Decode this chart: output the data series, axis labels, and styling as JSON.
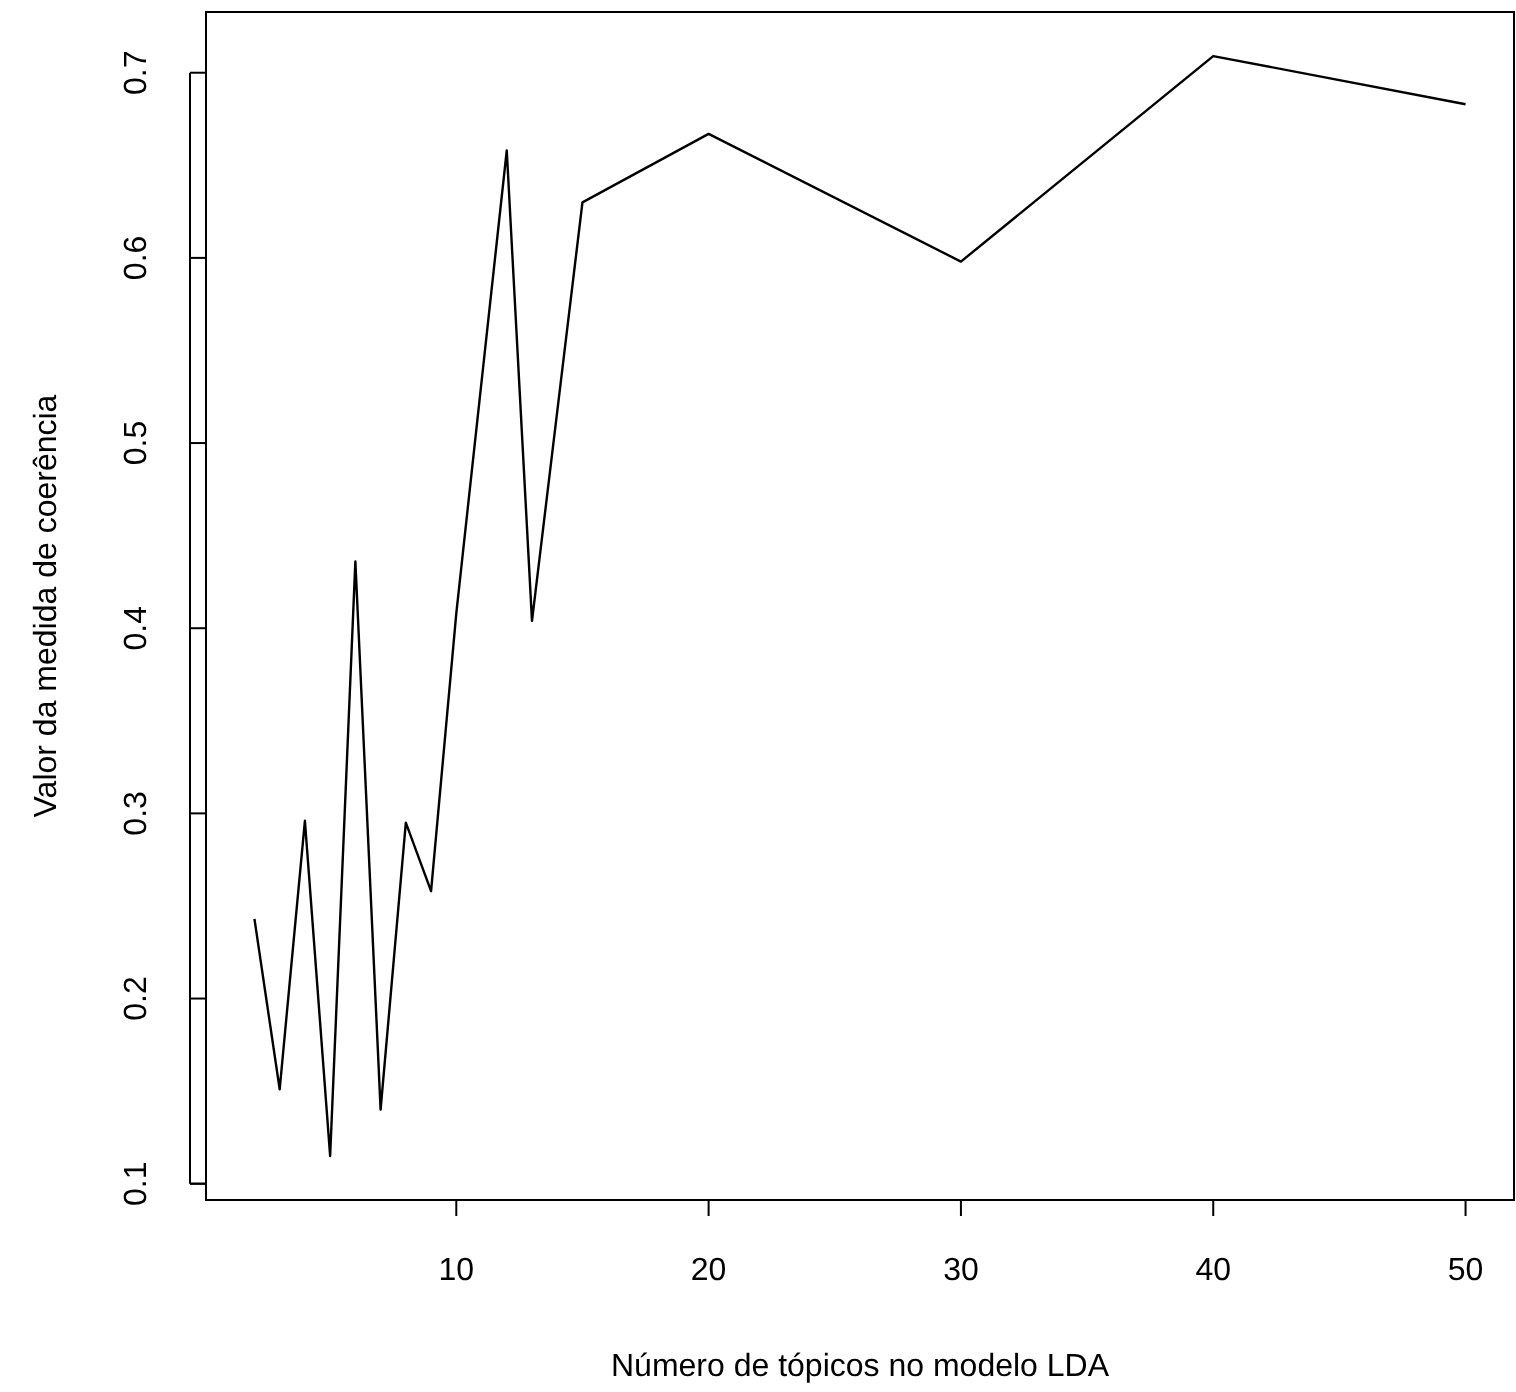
{
  "chart_data": {
    "type": "line",
    "xlabel": "Número de tópicos no modelo LDA",
    "ylabel": "Valor da medida de coerência",
    "x": [
      2,
      3,
      4,
      5,
      6,
      7,
      8,
      9,
      10,
      12,
      13,
      15,
      20,
      30,
      40,
      50
    ],
    "series": [
      {
        "color": "#000000",
        "values": [
          0.243,
          0.151,
          0.296,
          0.115,
          0.436,
          0.14,
          0.295,
          0.258,
          0.408,
          0.658,
          0.404,
          0.63,
          0.667,
          0.598,
          0.709,
          0.683
        ]
      }
    ],
    "xlim": [
      0.08,
      51.92
    ],
    "ylim": [
      0.0912,
      0.7328
    ],
    "xticks": [
      10,
      20,
      30,
      40,
      50
    ],
    "yticks": [
      0.1,
      0.2,
      0.3,
      0.4,
      0.5,
      0.6,
      0.7
    ],
    "grid": false,
    "marker": "none",
    "line_style": "solid"
  }
}
